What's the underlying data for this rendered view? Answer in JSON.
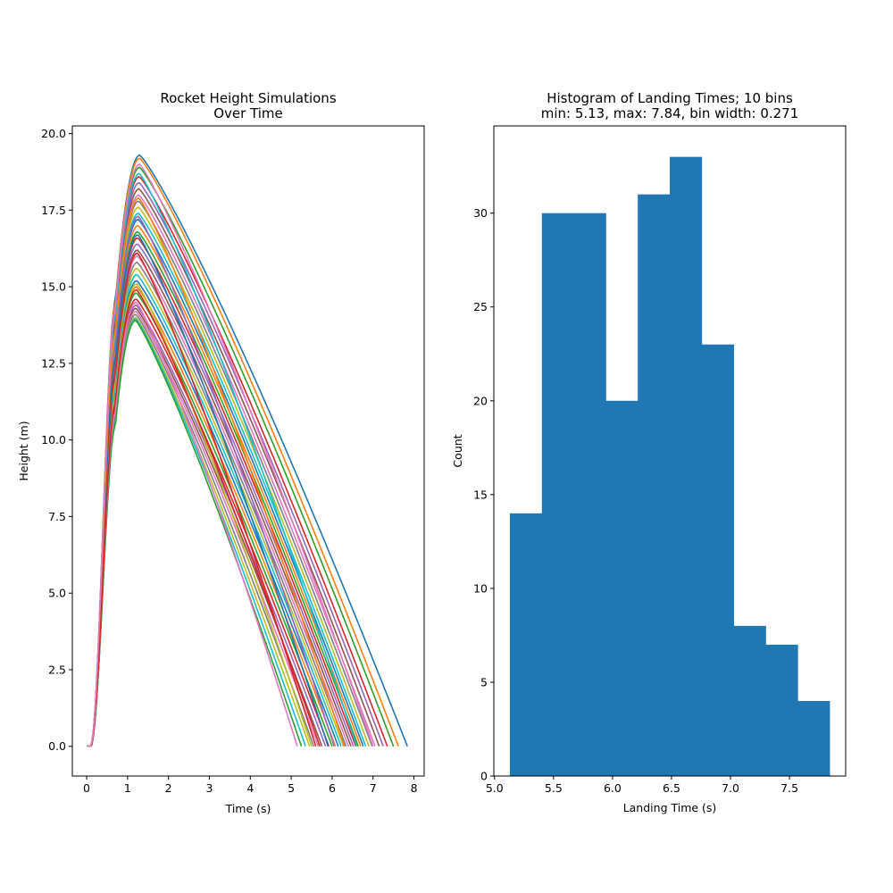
{
  "chart_data": [
    {
      "type": "line",
      "title_line1": "Rocket Height Simulations",
      "title_line2": "Over Time",
      "xlabel": "Time (s)",
      "ylabel": "Height (m)",
      "xlim": [
        -0.35,
        8.25
      ],
      "ylim": [
        -0.97,
        20.25
      ],
      "xticks": [
        0,
        1,
        2,
        3,
        4,
        5,
        6,
        7,
        8
      ],
      "xtick_labels": [
        "0",
        "1",
        "2",
        "3",
        "4",
        "5",
        "6",
        "7",
        "8"
      ],
      "yticks": [
        0.0,
        2.5,
        5.0,
        7.5,
        10.0,
        12.5,
        15.0,
        17.5,
        20.0
      ],
      "ytick_labels": [
        "0.0",
        "2.5",
        "5.0",
        "7.5",
        "10.0",
        "12.5",
        "15.0",
        "17.5",
        "20.0"
      ],
      "grid": false,
      "legend": "none",
      "curve_model": {
        "ignition_end_s": 0.1,
        "burnout_s": 0.7,
        "burnout_fraction_of_peak": 0.75,
        "peak_time_range_s": [
          1.2,
          1.3
        ]
      },
      "series": [
        {
          "peak_height": 19.3,
          "landing_time": 7.84,
          "color": "#1f77b4"
        },
        {
          "peak_height": 19.2,
          "landing_time": 7.62,
          "color": "#ff7f0e"
        },
        {
          "peak_height": 18.9,
          "landing_time": 7.5,
          "color": "#2ca02c"
        },
        {
          "peak_height": 18.6,
          "landing_time": 7.35,
          "color": "#d62728"
        },
        {
          "peak_height": 18.4,
          "landing_time": 7.25,
          "color": "#9467bd"
        },
        {
          "peak_height": 18.2,
          "landing_time": 7.15,
          "color": "#8c564b"
        },
        {
          "peak_height": 18.0,
          "landing_time": 7.05,
          "color": "#e377c2"
        },
        {
          "peak_height": 17.8,
          "landing_time": 6.98,
          "color": "#7f7f7f"
        },
        {
          "peak_height": 17.6,
          "landing_time": 6.9,
          "color": "#bcbd22"
        },
        {
          "peak_height": 17.4,
          "landing_time": 6.82,
          "color": "#17becf"
        },
        {
          "peak_height": 17.2,
          "landing_time": 6.76,
          "color": "#1f77b4"
        },
        {
          "peak_height": 17.0,
          "landing_time": 6.7,
          "color": "#ff7f0e"
        },
        {
          "peak_height": 16.8,
          "landing_time": 6.64,
          "color": "#2ca02c"
        },
        {
          "peak_height": 16.6,
          "landing_time": 6.58,
          "color": "#d62728"
        },
        {
          "peak_height": 16.4,
          "landing_time": 6.52,
          "color": "#9467bd"
        },
        {
          "peak_height": 16.2,
          "landing_time": 6.46,
          "color": "#8c564b"
        },
        {
          "peak_height": 16.0,
          "landing_time": 6.4,
          "color": "#e377c2"
        },
        {
          "peak_height": 15.8,
          "landing_time": 6.34,
          "color": "#7f7f7f"
        },
        {
          "peak_height": 15.6,
          "landing_time": 6.28,
          "color": "#bcbd22"
        },
        {
          "peak_height": 15.4,
          "landing_time": 6.22,
          "color": "#17becf"
        },
        {
          "peak_height": 15.2,
          "landing_time": 6.15,
          "color": "#1f77b4"
        },
        {
          "peak_height": 15.0,
          "landing_time": 6.08,
          "color": "#ff7f0e"
        },
        {
          "peak_height": 14.8,
          "landing_time": 6.0,
          "color": "#2ca02c"
        },
        {
          "peak_height": 14.6,
          "landing_time": 5.92,
          "color": "#d62728"
        },
        {
          "peak_height": 14.4,
          "landing_time": 5.84,
          "color": "#9467bd"
        },
        {
          "peak_height": 14.3,
          "landing_time": 5.75,
          "color": "#8c564b"
        },
        {
          "peak_height": 14.2,
          "landing_time": 5.66,
          "color": "#e377c2"
        },
        {
          "peak_height": 14.1,
          "landing_time": 5.55,
          "color": "#7f7f7f"
        },
        {
          "peak_height": 14.0,
          "landing_time": 5.45,
          "color": "#bcbd22"
        },
        {
          "peak_height": 13.95,
          "landing_time": 5.35,
          "color": "#17becf"
        },
        {
          "peak_height": 13.9,
          "landing_time": 5.25,
          "color": "#2ca02c"
        },
        {
          "peak_height": 14.5,
          "landing_time": 5.15,
          "color": "#e377c2"
        },
        {
          "peak_height": 16.1,
          "landing_time": 5.6,
          "color": "#d62728"
        },
        {
          "peak_height": 17.3,
          "landing_time": 6.05,
          "color": "#9467bd"
        },
        {
          "peak_height": 15.1,
          "landing_time": 5.5,
          "color": "#bcbd22"
        },
        {
          "peak_height": 18.7,
          "landing_time": 6.6,
          "color": "#17becf"
        },
        {
          "peak_height": 16.7,
          "landing_time": 5.9,
          "color": "#1f77b4"
        },
        {
          "peak_height": 17.9,
          "landing_time": 6.3,
          "color": "#ff7f0e"
        },
        {
          "peak_height": 14.9,
          "landing_time": 5.7,
          "color": "#d62728"
        },
        {
          "peak_height": 19.0,
          "landing_time": 7.0,
          "color": "#e377c2"
        }
      ]
    },
    {
      "type": "bar",
      "title_line1": "Histogram of Landing Times; 10 bins",
      "title_line2": "min: 5.13, max: 7.84, bin width: 0.271",
      "xlabel": "Landing Time (s)",
      "ylabel": "Count",
      "xlim": [
        4.994,
        7.976
      ],
      "ylim": [
        0,
        34.65
      ],
      "xticks": [
        5.0,
        5.5,
        6.0,
        6.5,
        7.0,
        7.5
      ],
      "xtick_labels": [
        "5.0",
        "5.5",
        "6.0",
        "6.5",
        "7.0",
        "7.5"
      ],
      "yticks": [
        0,
        5,
        10,
        15,
        20,
        25,
        30
      ],
      "ytick_labels": [
        "0",
        "5",
        "10",
        "15",
        "20",
        "25",
        "30"
      ],
      "grid": false,
      "legend": "none",
      "bar_color": "#1f77b4",
      "bin_edges": [
        5.13,
        5.401,
        5.672,
        5.943,
        6.214,
        6.485,
        6.756,
        7.027,
        7.298,
        7.569,
        7.84
      ],
      "values": [
        14,
        30,
        30,
        20,
        31,
        33,
        23,
        8,
        7,
        4
      ]
    }
  ]
}
